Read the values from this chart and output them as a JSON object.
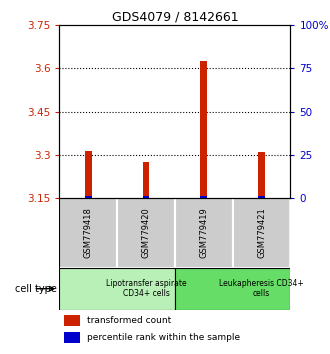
{
  "title": "GDS4079 / 8142661",
  "samples": [
    "GSM779418",
    "GSM779420",
    "GSM779419",
    "GSM779421"
  ],
  "red_values": [
    3.315,
    3.275,
    3.625,
    3.31
  ],
  "blue_values": [
    3.157,
    3.159,
    3.159,
    3.157
  ],
  "y_min": 3.15,
  "y_max": 3.75,
  "y_ticks_left": [
    3.15,
    3.3,
    3.45,
    3.6,
    3.75
  ],
  "y_ticks_right": [
    0,
    25,
    50,
    75,
    100
  ],
  "y_ticks_right_labels": [
    "0",
    "25",
    "50",
    "75",
    "100%"
  ],
  "dotted_lines": [
    3.3,
    3.45,
    3.6
  ],
  "cell_type_groups": [
    {
      "label": "Lipotransfer aspirate\nCD34+ cells",
      "color": "#b8f0b8",
      "start": 0,
      "end": 2
    },
    {
      "label": "Leukapheresis CD34+\ncells",
      "color": "#66dd66",
      "start": 2,
      "end": 4
    }
  ],
  "cell_type_label": "cell type",
  "legend_red": "transformed count",
  "legend_blue": "percentile rank within the sample",
  "red_color": "#cc2200",
  "blue_color": "#0000cc",
  "bar_width": 0.12,
  "sample_bg_color": "#cccccc",
  "left_tick_color": "#cc2200",
  "right_tick_color": "#0000cc",
  "title_fontsize": 9
}
